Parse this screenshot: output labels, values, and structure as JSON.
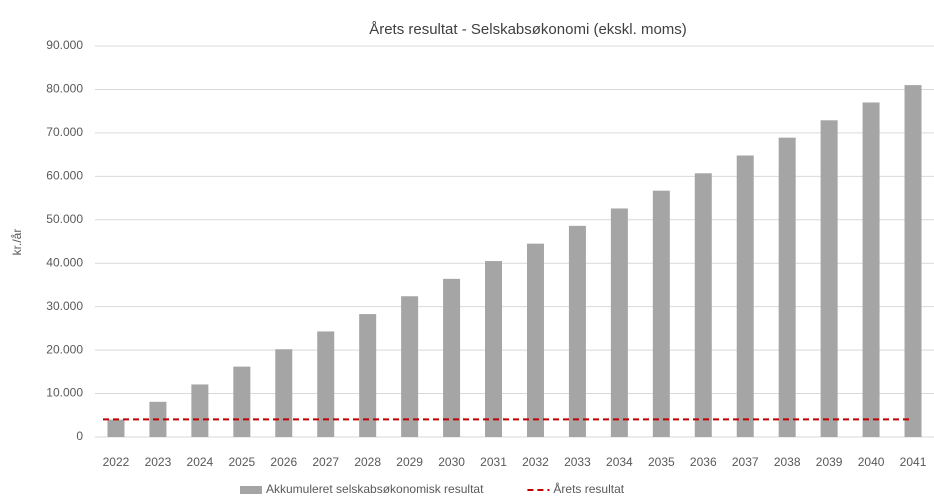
{
  "chart_data": {
    "type": "bar",
    "title": "Årets resultat - Selskabsøkonomi (ekskl. moms)",
    "y_label": "kr./år",
    "categories": [
      "2022",
      "2023",
      "2024",
      "2025",
      "2026",
      "2027",
      "2028",
      "2029",
      "2030",
      "2031",
      "2032",
      "2033",
      "2034",
      "2035",
      "2036",
      "2037",
      "2038",
      "2039",
      "2040",
      "2041"
    ],
    "series": [
      {
        "name": "Akkumuleret selskabsøkonomisk resultat",
        "type": "bar",
        "color": "#a5a5a5",
        "values": [
          4000,
          8100,
          12100,
          16200,
          20200,
          24300,
          28300,
          32400,
          36400,
          40500,
          44500,
          48600,
          52600,
          56700,
          60700,
          64800,
          68900,
          72900,
          77000,
          81000
        ]
      },
      {
        "name": "Årets resultat",
        "type": "line",
        "color": "#c00000",
        "values": [
          4050,
          4050,
          4050,
          4050,
          4050,
          4050,
          4050,
          4050,
          4050,
          4050,
          4050,
          4050,
          4050,
          4050,
          4050,
          4050,
          4050,
          4050,
          4050,
          4050
        ]
      }
    ],
    "ylim": [
      0,
      90000
    ],
    "yticks": [
      0,
      {
        "value": 10000,
        "label": "10.000"
      },
      {
        "value": 20000,
        "label": "20.000"
      },
      {
        "value": 30000,
        "label": "30.000"
      },
      {
        "value": 40000,
        "label": "40.000"
      },
      {
        "value": 50000,
        "label": "50.000"
      },
      {
        "value": 60000,
        "label": "60.000"
      },
      {
        "value": 70000,
        "label": "70.000"
      },
      {
        "value": 80000,
        "label": "80.000"
      },
      {
        "value": 90000,
        "label": "90.000"
      }
    ],
    "grid": true,
    "legend": "bottom"
  }
}
